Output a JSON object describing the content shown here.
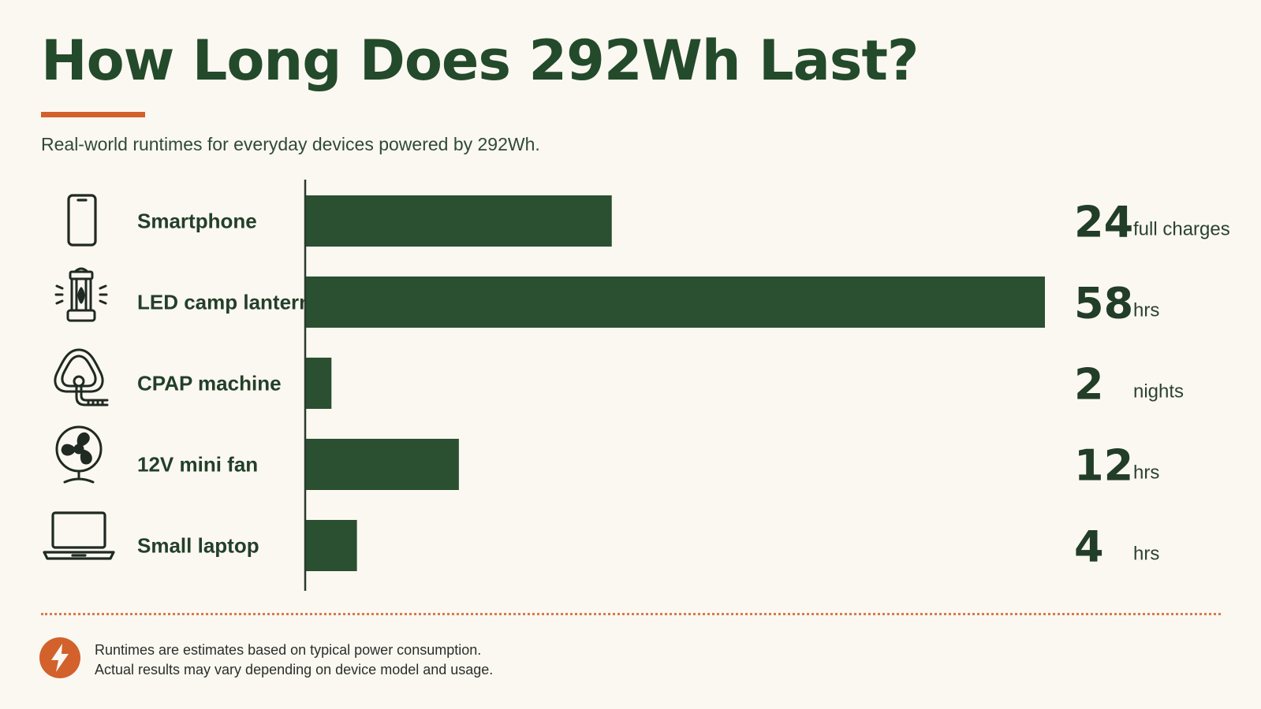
{
  "header": {
    "title": "How Long Does 292Wh Last?",
    "subtitle": "Real-world runtimes for everyday devices powered by 292Wh."
  },
  "colors": {
    "bar": "#2b4f31",
    "accent": "#d2612c",
    "background": "#fbf8f1"
  },
  "chart_data": {
    "type": "bar",
    "orientation": "horizontal",
    "categories": [
      "Smartphone",
      "LED camp lantern",
      "CPAP machine",
      "12V mini fan",
      "Small laptop"
    ],
    "values": [
      24,
      58,
      2,
      12,
      4
    ],
    "units": [
      "full charges",
      "hrs",
      "nights",
      "hrs",
      "hrs"
    ],
    "icons": [
      "smartphone-icon",
      "lantern-icon",
      "cpap-mask-icon",
      "fan-icon",
      "laptop-icon"
    ],
    "xlim": [
      0,
      58
    ],
    "grid": false
  },
  "footer": {
    "icon": "lightning-bolt-icon",
    "note_line1": "Runtimes are estimates based on typical power consumption.",
    "note_line2": "Actual results may vary depending on device model and usage."
  }
}
